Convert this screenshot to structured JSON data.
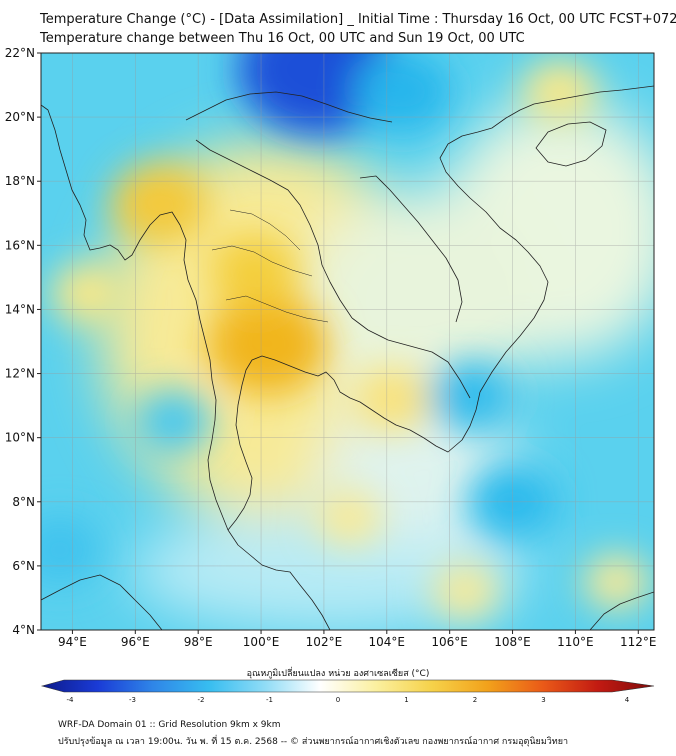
{
  "title": {
    "line1": "Temperature Change (°C) - [Data Assimilation] _ Initial Time : Thursday 16 Oct, 00 UTC FCST+072",
    "line2": "Temperature change between Thu 16 Oct, 00 UTC and Sun 19 Oct, 00 UTC"
  },
  "map": {
    "lat_range": [
      4,
      22
    ],
    "lon_range": [
      93,
      112.5
    ],
    "lat_ticks": [
      "4°N",
      "6°N",
      "8°N",
      "10°N",
      "12°N",
      "14°N",
      "16°N",
      "18°N",
      "20°N",
      "22°N"
    ],
    "lon_ticks": [
      "94°E",
      "96°E",
      "98°E",
      "100°E",
      "102°E",
      "104°E",
      "106°E",
      "108°E",
      "110°E",
      "112°E"
    ],
    "grid": true,
    "background_color": "#5ad1ee",
    "warm_anomalies": [
      {
        "lon": 96.8,
        "lat": 17.3,
        "value": 1.4,
        "color": "#f4c93a"
      },
      {
        "lon": 100.2,
        "lat": 12.9,
        "value": 2.0,
        "color": "#f1b51c"
      },
      {
        "lon": 99.8,
        "lat": 15.2,
        "value": 1.2,
        "color": "#f4cf3c"
      },
      {
        "lon": 104.2,
        "lat": 11.2,
        "value": 0.9,
        "color": "#f9e27a"
      },
      {
        "lon": 109.5,
        "lat": 20.8,
        "value": 0.8,
        "color": "#f9e888"
      },
      {
        "lon": 94.5,
        "lat": 14.5,
        "value": 0.8,
        "color": "#f9e888"
      },
      {
        "lon": 102.8,
        "lat": 7.5,
        "value": 0.6,
        "color": "#f9ea96"
      },
      {
        "lon": 111.3,
        "lat": 5.5,
        "value": 0.6,
        "color": "#f9ea96"
      },
      {
        "lon": 106.5,
        "lat": 5.2,
        "value": 0.6,
        "color": "#f9ea96"
      }
    ],
    "cold_anomalies": [
      {
        "lon": 101.8,
        "lat": 21.5,
        "value": -3.0,
        "color": "#1e4fd8"
      },
      {
        "lon": 104.5,
        "lat": 20.8,
        "value": -1.4,
        "color": "#27b6ec"
      },
      {
        "lon": 108.0,
        "lat": 8.0,
        "value": -1.2,
        "color": "#2cbaed"
      },
      {
        "lon": 97.2,
        "lat": 10.5,
        "value": -0.9,
        "color": "#49c8ef"
      },
      {
        "lon": 93.6,
        "lat": 6.5,
        "value": -1.0,
        "color": "#3fc3ee"
      },
      {
        "lon": 106.7,
        "lat": 11.3,
        "value": -1.1,
        "color": "#31bced"
      }
    ]
  },
  "colorbar": {
    "title": "อุณหภูมิเปลี่ยนแปลง หน่วย องศาเซลเซียส (°C)",
    "min": -4,
    "max": 4,
    "labels": [
      "-4",
      "-3",
      "-2",
      "-1",
      "0",
      "1",
      "2",
      "3",
      "4"
    ],
    "stops": [
      "#0d1a8a",
      "#1a3bd6",
      "#2f86e8",
      "#37bdf0",
      "#8fdcf6",
      "#ffffff",
      "#fbf0a0",
      "#f6d24a",
      "#f2a21b",
      "#ea5a18",
      "#c21a12",
      "#7d0a0a"
    ]
  },
  "footer": {
    "line1": "WRF-DA Domain 01 :: Grid Resolution 9km x 9km",
    "line2": "ปรับปรุงข้อมูล ณ เวลา 19:00น. วัน พ. ที่ 15 ต.ค. 2568 -- © ส่วนพยากรณ์อากาศเชิงตัวเลข กองพยากรณ์อากาศ กรมอุตุนิยมวิทยา"
  }
}
